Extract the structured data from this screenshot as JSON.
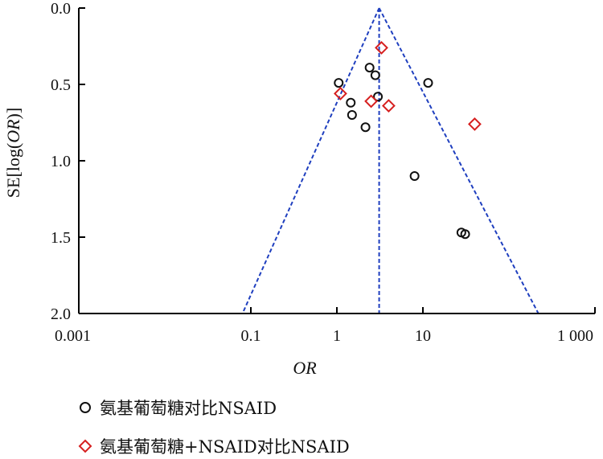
{
  "chart_data": {
    "type": "scatter",
    "subtype": "funnel-plot",
    "xlabel": "OR",
    "ylabel": "SE[log(OR)]",
    "x_scale": "log10",
    "xlim": [
      0.001,
      1000
    ],
    "ylim": [
      0,
      2.0
    ],
    "y_inverted": true,
    "x_ticks": [
      0.001,
      0.1,
      1,
      10,
      1000
    ],
    "x_tick_labels": [
      "0.001",
      "0.1",
      "1",
      "10",
      "1 000"
    ],
    "y_ticks": [
      0,
      0.5,
      1.0,
      1.5,
      2.0
    ],
    "y_tick_labels": [
      "0.0",
      "0.5",
      "1.0",
      "1.5",
      "2.0"
    ],
    "pooled_or": 3.1,
    "funnel_lines": {
      "apex_se": 0,
      "base_se": 2.0,
      "base_or_left": 0.08,
      "base_or_right": 220
    },
    "colors": {
      "axis": "#000000",
      "funnel": "#1f3fbf",
      "series1": "#111111",
      "series2": "#d62020"
    },
    "legend_position": "bottom-left",
    "series": [
      {
        "name": "氨基葡萄糖对比NSAID",
        "marker": "circle",
        "points": [
          {
            "x": 1.05,
            "y": 0.49
          },
          {
            "x": 2.4,
            "y": 0.39
          },
          {
            "x": 2.8,
            "y": 0.44
          },
          {
            "x": 3.0,
            "y": 0.58
          },
          {
            "x": 11.5,
            "y": 0.49
          },
          {
            "x": 1.45,
            "y": 0.62
          },
          {
            "x": 1.5,
            "y": 0.7
          },
          {
            "x": 2.15,
            "y": 0.78
          },
          {
            "x": 8.0,
            "y": 1.1
          },
          {
            "x": 28.0,
            "y": 1.47
          },
          {
            "x": 31.0,
            "y": 1.48
          }
        ]
      },
      {
        "name": "氨基葡萄糖+NSAID对比NSAID",
        "marker": "diamond",
        "points": [
          {
            "x": 3.3,
            "y": 0.26
          },
          {
            "x": 1.1,
            "y": 0.56
          },
          {
            "x": 2.5,
            "y": 0.61
          },
          {
            "x": 4.0,
            "y": 0.64
          },
          {
            "x": 40.0,
            "y": 0.76
          }
        ]
      }
    ]
  }
}
